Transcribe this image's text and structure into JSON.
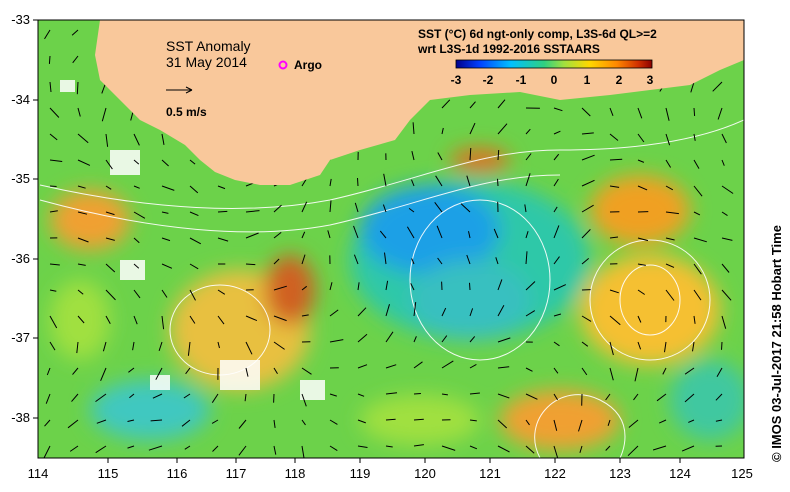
{
  "map": {
    "title": "SST Anomaly",
    "date": "31 May 2014",
    "legend_argo": "Argo",
    "velocity_scale_label": "0.5 m/s",
    "product_line1": "SST (°C) 6d ngt-only comp, L3S-6d QL>=2",
    "product_line2": "wrt L3S-1d 1992-2016 SSTAARS",
    "credit": "© IMOS 03-Jul-2017 21:58 Hobart Time",
    "colors": {
      "land": "#f9c89b",
      "argo": "#ff00ff"
    }
  },
  "colorbar": {
    "ticks": [
      "-3",
      "-2",
      "-1",
      "0",
      "1",
      "2",
      "3"
    ],
    "colors": [
      "#00008b",
      "#0050ff",
      "#00c8ff",
      "#3cd27a",
      "#b4e632",
      "#ffd200",
      "#ff8c00",
      "#c83200",
      "#8b0000"
    ]
  },
  "axes": {
    "lon_ticks": [
      "114",
      "115",
      "116",
      "117",
      "118",
      "119",
      "120",
      "121",
      "122",
      "123",
      "124",
      "125"
    ],
    "lat_ticks": [
      "-33",
      "-34",
      "-35",
      "-36",
      "-37",
      "-38"
    ]
  }
}
